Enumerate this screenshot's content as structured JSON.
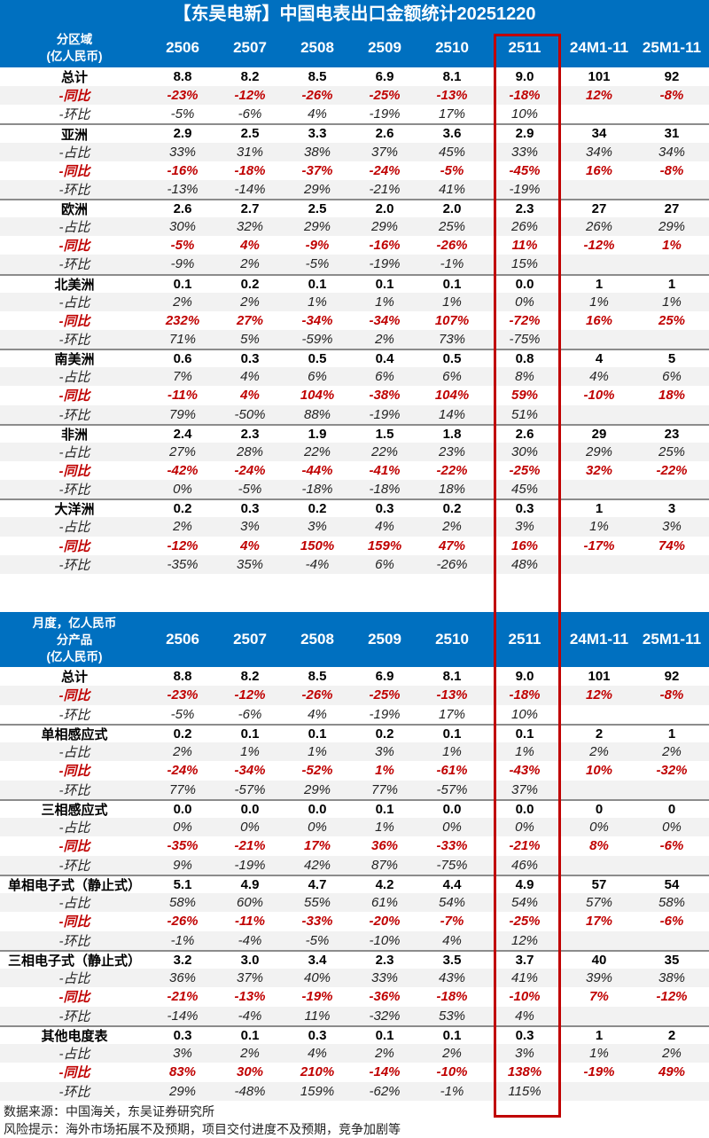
{
  "title": "【东吴电新】中国电表出口金额统计20251220",
  "columns": [
    "2506",
    "2507",
    "2508",
    "2509",
    "2510",
    "2511",
    "24M1-11",
    "25M1-11"
  ],
  "highlight_column": "2511",
  "colors": {
    "header_bg": "#0070c0",
    "highlight_border": "#c00000",
    "yoy_text": "#c00000",
    "stripe": "#f2f2f2"
  },
  "region_table": {
    "header_label": [
      "分区域",
      "(亿人民币)"
    ],
    "groups": [
      {
        "rows": [
          [
            "总计",
            "8.8",
            "8.2",
            "8.5",
            "6.9",
            "8.1",
            "9.0",
            "101",
            "92"
          ],
          [
            "-同比",
            "-23%",
            "-12%",
            "-26%",
            "-25%",
            "-13%",
            "-18%",
            "12%",
            "-8%"
          ],
          [
            "-环比",
            "-5%",
            "-6%",
            "4%",
            "-19%",
            "17%",
            "10%",
            "",
            ""
          ]
        ]
      },
      {
        "rows": [
          [
            "亚洲",
            "2.9",
            "2.5",
            "3.3",
            "2.6",
            "3.6",
            "2.9",
            "34",
            "31"
          ],
          [
            "-占比",
            "33%",
            "31%",
            "38%",
            "37%",
            "45%",
            "33%",
            "34%",
            "34%"
          ],
          [
            "-同比",
            "-16%",
            "-18%",
            "-37%",
            "-24%",
            "-5%",
            "-45%",
            "16%",
            "-8%"
          ],
          [
            "-环比",
            "-13%",
            "-14%",
            "29%",
            "-21%",
            "41%",
            "-19%",
            "",
            ""
          ]
        ]
      },
      {
        "rows": [
          [
            "欧洲",
            "2.6",
            "2.7",
            "2.5",
            "2.0",
            "2.0",
            "2.3",
            "27",
            "27"
          ],
          [
            "-占比",
            "30%",
            "32%",
            "29%",
            "29%",
            "25%",
            "26%",
            "26%",
            "29%"
          ],
          [
            "-同比",
            "-5%",
            "4%",
            "-9%",
            "-16%",
            "-26%",
            "11%",
            "-12%",
            "1%"
          ],
          [
            "-环比",
            "-9%",
            "2%",
            "-5%",
            "-19%",
            "-1%",
            "15%",
            "",
            ""
          ]
        ]
      },
      {
        "rows": [
          [
            "北美洲",
            "0.1",
            "0.2",
            "0.1",
            "0.1",
            "0.1",
            "0.0",
            "1",
            "1"
          ],
          [
            "-占比",
            "2%",
            "2%",
            "1%",
            "1%",
            "1%",
            "0%",
            "1%",
            "1%"
          ],
          [
            "-同比",
            "232%",
            "27%",
            "-34%",
            "-34%",
            "107%",
            "-72%",
            "16%",
            "25%"
          ],
          [
            "-环比",
            "71%",
            "5%",
            "-59%",
            "2%",
            "73%",
            "-75%",
            "",
            ""
          ]
        ]
      },
      {
        "rows": [
          [
            "南美洲",
            "0.6",
            "0.3",
            "0.5",
            "0.4",
            "0.5",
            "0.8",
            "4",
            "5"
          ],
          [
            "-占比",
            "7%",
            "4%",
            "6%",
            "6%",
            "6%",
            "8%",
            "4%",
            "6%"
          ],
          [
            "-同比",
            "-11%",
            "4%",
            "104%",
            "-38%",
            "104%",
            "59%",
            "-10%",
            "18%"
          ],
          [
            "-环比",
            "79%",
            "-50%",
            "88%",
            "-19%",
            "14%",
            "51%",
            "",
            ""
          ]
        ]
      },
      {
        "rows": [
          [
            "非洲",
            "2.4",
            "2.3",
            "1.9",
            "1.5",
            "1.8",
            "2.6",
            "29",
            "23"
          ],
          [
            "-占比",
            "27%",
            "28%",
            "22%",
            "22%",
            "23%",
            "30%",
            "29%",
            "25%"
          ],
          [
            "-同比",
            "-42%",
            "-24%",
            "-44%",
            "-41%",
            "-22%",
            "-25%",
            "32%",
            "-22%"
          ],
          [
            "-环比",
            "0%",
            "-5%",
            "-18%",
            "-18%",
            "18%",
            "45%",
            "",
            ""
          ]
        ]
      },
      {
        "rows": [
          [
            "大洋洲",
            "0.2",
            "0.3",
            "0.2",
            "0.3",
            "0.2",
            "0.3",
            "1",
            "3"
          ],
          [
            "-占比",
            "2%",
            "3%",
            "3%",
            "4%",
            "2%",
            "3%",
            "1%",
            "3%"
          ],
          [
            "-同比",
            "-12%",
            "4%",
            "150%",
            "159%",
            "47%",
            "16%",
            "-17%",
            "74%"
          ],
          [
            "-环比",
            "-35%",
            "35%",
            "-4%",
            "6%",
            "-26%",
            "48%",
            "",
            ""
          ]
        ]
      }
    ]
  },
  "product_table": {
    "header_label": [
      "月度，亿人民币",
      "分产品",
      "(亿人民币)"
    ],
    "groups": [
      {
        "rows": [
          [
            "总计",
            "8.8",
            "8.2",
            "8.5",
            "6.9",
            "8.1",
            "9.0",
            "101",
            "92"
          ],
          [
            "-同比",
            "-23%",
            "-12%",
            "-26%",
            "-25%",
            "-13%",
            "-18%",
            "12%",
            "-8%"
          ],
          [
            "-环比",
            "-5%",
            "-6%",
            "4%",
            "-19%",
            "17%",
            "10%",
            "",
            ""
          ]
        ]
      },
      {
        "rows": [
          [
            "单相感应式",
            "0.2",
            "0.1",
            "0.1",
            "0.2",
            "0.1",
            "0.1",
            "2",
            "1"
          ],
          [
            "-占比",
            "2%",
            "1%",
            "1%",
            "3%",
            "1%",
            "1%",
            "2%",
            "2%"
          ],
          [
            "-同比",
            "-24%",
            "-34%",
            "-52%",
            "1%",
            "-61%",
            "-43%",
            "10%",
            "-32%"
          ],
          [
            "-环比",
            "77%",
            "-57%",
            "29%",
            "77%",
            "-57%",
            "37%",
            "",
            ""
          ]
        ]
      },
      {
        "rows": [
          [
            "三相感应式",
            "0.0",
            "0.0",
            "0.0",
            "0.1",
            "0.0",
            "0.0",
            "0",
            "0"
          ],
          [
            "-占比",
            "0%",
            "0%",
            "0%",
            "1%",
            "0%",
            "0%",
            "0%",
            "0%"
          ],
          [
            "-同比",
            "-35%",
            "-21%",
            "17%",
            "36%",
            "-33%",
            "-21%",
            "8%",
            "-6%"
          ],
          [
            "-环比",
            "9%",
            "-19%",
            "42%",
            "87%",
            "-75%",
            "46%",
            "",
            ""
          ]
        ]
      },
      {
        "rows": [
          [
            "单相电子式（静止式）",
            "5.1",
            "4.9",
            "4.7",
            "4.2",
            "4.4",
            "4.9",
            "57",
            "54"
          ],
          [
            "-占比",
            "58%",
            "60%",
            "55%",
            "61%",
            "54%",
            "54%",
            "57%",
            "58%"
          ],
          [
            "-同比",
            "-26%",
            "-11%",
            "-33%",
            "-20%",
            "-7%",
            "-25%",
            "17%",
            "-6%"
          ],
          [
            "-环比",
            "-1%",
            "-4%",
            "-5%",
            "-10%",
            "4%",
            "12%",
            "",
            ""
          ]
        ]
      },
      {
        "rows": [
          [
            "三相电子式（静止式）",
            "3.2",
            "3.0",
            "3.4",
            "2.3",
            "3.5",
            "3.7",
            "40",
            "35"
          ],
          [
            "-占比",
            "36%",
            "37%",
            "40%",
            "33%",
            "43%",
            "41%",
            "39%",
            "38%"
          ],
          [
            "-同比",
            "-21%",
            "-13%",
            "-19%",
            "-36%",
            "-18%",
            "-10%",
            "7%",
            "-12%"
          ],
          [
            "-环比",
            "-14%",
            "-4%",
            "11%",
            "-32%",
            "53%",
            "4%",
            "",
            ""
          ]
        ]
      },
      {
        "rows": [
          [
            "其他电度表",
            "0.3",
            "0.1",
            "0.3",
            "0.1",
            "0.1",
            "0.3",
            "1",
            "2"
          ],
          [
            "-占比",
            "3%",
            "2%",
            "4%",
            "2%",
            "2%",
            "3%",
            "1%",
            "2%"
          ],
          [
            "-同比",
            "83%",
            "30%",
            "210%",
            "-14%",
            "-10%",
            "138%",
            "-19%",
            "49%"
          ],
          [
            "-环比",
            "29%",
            "-48%",
            "159%",
            "-62%",
            "-1%",
            "115%",
            "",
            ""
          ]
        ]
      }
    ]
  },
  "footer": {
    "source": "数据来源：中国海关，东吴证券研究所",
    "risk": "风险提示：海外市场拓展不及预期，项目交付进度不及预期，竞争加剧等"
  }
}
